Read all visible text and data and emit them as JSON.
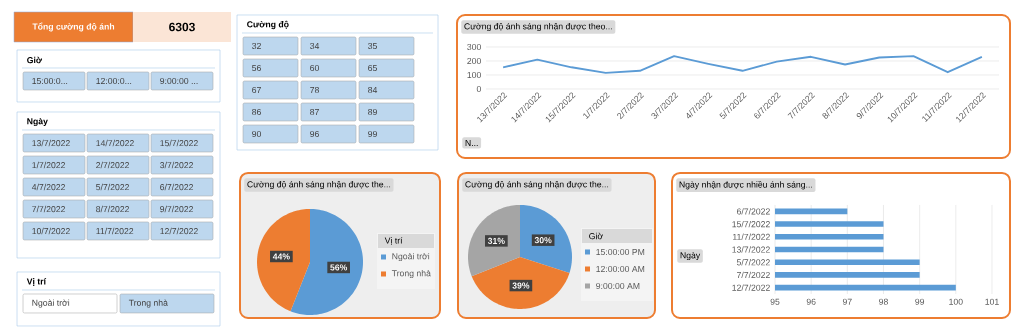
{
  "chart_data": [
    {
      "type": "other",
      "title": "Tổng cường độ ánh",
      "values": [
        6303
      ],
      "data_labels": true
    },
    {
      "type": "other",
      "title": "Giờ",
      "categories": [
        "15:00:0...",
        "12:00:0...",
        "9:00:00 ..."
      ],
      "colors": [
        "#bdd7ee",
        "#bdd7ee",
        "#bdd7ee"
      ]
    },
    {
      "type": "other",
      "title": "Ngày",
      "categories": [
        "13/7/2022",
        "14/7/2022",
        "15/7/2022",
        "1/7/2022",
        "2/7/2022",
        "3/7/2022",
        "4/7/2022",
        "5/7/2022",
        "6/7/2022",
        "7/7/2022",
        "8/7/2022",
        "9/7/2022",
        "10/7/2022",
        "11/7/2022",
        "12/7/2022"
      ],
      "colors": [
        "#bdd7ee",
        "#bdd7ee",
        "#bdd7ee",
        "#bdd7ee",
        "#bdd7ee",
        "#bdd7ee",
        "#bdd7ee",
        "#bdd7ee",
        "#bdd7ee",
        "#bdd7ee",
        "#bdd7ee",
        "#bdd7ee",
        "#bdd7ee",
        "#bdd7ee",
        "#bdd7ee"
      ]
    },
    {
      "type": "other",
      "title": "Vị trí",
      "categories": [
        "Ngoài trời",
        "Trong nhà"
      ],
      "colors": [
        "#ffffff",
        "#bdd7ee"
      ]
    },
    {
      "type": "other",
      "title": "Cường độ",
      "categories": [
        "32",
        "34",
        "35",
        "56",
        "60",
        "65",
        "67",
        "78",
        "84",
        "86",
        "87",
        "89",
        "90",
        "96",
        "99"
      ],
      "colors": [
        "#bdd7ee",
        "#bdd7ee",
        "#bdd7ee",
        "#bdd7ee",
        "#bdd7ee",
        "#bdd7ee",
        "#bdd7ee",
        "#bdd7ee",
        "#bdd7ee",
        "#bdd7ee",
        "#bdd7ee",
        "#bdd7ee",
        "#bdd7ee",
        "#bdd7ee",
        "#bdd7ee"
      ]
    },
    {
      "type": "line",
      "title": "Cường độ ánh sáng nhận được theo...",
      "categories": [
        "13/7/2022",
        "14/7/2022",
        "15/7/2022",
        "1/7/2022",
        "2/7/2022",
        "3/7/2022",
        "4/7/2022",
        "5/7/2022",
        "6/7/2022",
        "7/7/2022",
        "8/7/2022",
        "9/7/2022",
        "10/7/2022",
        "11/7/2022",
        "12/7/2022"
      ],
      "values": [
        155,
        210,
        155,
        115,
        130,
        235,
        180,
        130,
        195,
        230,
        175,
        225,
        235,
        120,
        230
      ],
      "color": "#5b9bd5",
      "ylim": [
        0,
        300
      ],
      "yticks": [
        0,
        100,
        200,
        300
      ],
      "grid": "y",
      "annotations": [
        "N..."
      ]
    },
    {
      "type": "pie",
      "title": "Cường độ ánh sáng nhận được the...",
      "legend_title": "Vị trí",
      "categories": [
        "Ngoài trời",
        "Trong nhà"
      ],
      "values": [
        56,
        44
      ],
      "colors": [
        "#5b9bd5",
        "#ed7d31"
      ],
      "value_labels": [
        "56%",
        "44%"
      ],
      "legend": "right"
    },
    {
      "type": "pie",
      "title": "Cường độ ánh sáng nhận được the...",
      "legend_title": "Giờ",
      "categories": [
        "15:00:00 PM",
        "12:00:00 AM",
        "9:00:00 AM"
      ],
      "values": [
        30,
        39,
        31
      ],
      "colors": [
        "#5b9bd5",
        "#ed7d31",
        "#a5a5a5"
      ],
      "value_labels": [
        "30%",
        "39%",
        "31%"
      ],
      "legend": "right"
    },
    {
      "type": "bar",
      "orientation": "horizontal",
      "title": "Ngày nhận được nhiều ánh sáng...",
      "categories": [
        "6/7/2022",
        "15/7/2022",
        "11/7/2022",
        "13/7/2022",
        "5/7/2022",
        "7/7/2022",
        "12/7/2022"
      ],
      "values": [
        97,
        98,
        98,
        98,
        99,
        99,
        100
      ],
      "color": "#5b9bd5",
      "xlim": [
        95,
        101
      ],
      "xticks": [
        95,
        96,
        97,
        98,
        99,
        100,
        101
      ],
      "grid": "x",
      "annotations": [
        "Ngày"
      ]
    }
  ]
}
